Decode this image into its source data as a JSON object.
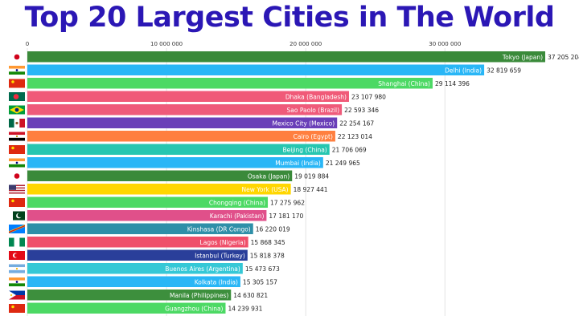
{
  "chart_data": {
    "type": "bar",
    "title": "Top 20 Largest Cities in The World",
    "orientation": "horizontal",
    "xlim": [
      0,
      37205204
    ],
    "xticks": [
      0,
      10000000,
      20000000,
      30000000
    ],
    "xtick_labels": [
      "0",
      "10 000 000",
      "20 000 000",
      "30 000 000"
    ],
    "grid": true,
    "categories": [
      "Tokyo (Japan)",
      "Delhi (India)",
      "Shanghai (China)",
      "Dhaka (Bangladesh)",
      "Sao Paolo (Brazil)",
      "Mexico City (Mexico)",
      "Cairo (Egypt)",
      "Beijing (China)",
      "Mumbai (India)",
      "Osaka (Japan)",
      "New York (USA)",
      "Chongqing (China)",
      "Karachi (Pakistan)",
      "Kinshasa (DR Congo)",
      "Lagos (Nigeria)",
      "Istanbul (Turkey)",
      "Buenos Aires (Argentina)",
      "Kolkata (India)",
      "Manila (Philippines)",
      "Guangzhou (China)"
    ],
    "values": [
      37205204,
      32819659,
      29114396,
      23107980,
      22593346,
      22254167,
      22123014,
      21706069,
      21249965,
      19019884,
      18927441,
      17275962,
      17181170,
      16220019,
      15868345,
      15818378,
      15473673,
      15305157,
      14630821,
      14239931
    ],
    "value_labels": [
      "37 205 204",
      "32 819 659",
      "29 114 396",
      "23 107 980",
      "22 593 346",
      "22 254 167",
      "22 123 014",
      "21 706 069",
      "21 249 965",
      "19 019 884",
      "18 927 441",
      "17 275 962",
      "17 181 170",
      "16 220 019",
      "15 868 345",
      "15 818 378",
      "15 473 673",
      "15 305 157",
      "14 630 821",
      "14 239 931"
    ],
    "bar_colors": [
      "#3a8a3a",
      "#29b6f6",
      "#4cd964",
      "#f05a78",
      "#ef5a7a",
      "#6a3fb8",
      "#ff7f3f",
      "#26c6b0",
      "#29b6f6",
      "#3a8a3a",
      "#ffd600",
      "#4cd964",
      "#e0508a",
      "#2e8fa8",
      "#ef4f6a",
      "#2a3f9a",
      "#35c8d6",
      "#29b6f6",
      "#3d8f3d",
      "#4cd964"
    ],
    "flag_icons": [
      "japan-flag-icon",
      "india-flag-icon",
      "china-flag-icon",
      "bangladesh-flag-icon",
      "brazil-flag-icon",
      "mexico-flag-icon",
      "egypt-flag-icon",
      "china-flag-icon",
      "india-flag-icon",
      "japan-flag-icon",
      "usa-flag-icon",
      "china-flag-icon",
      "pakistan-flag-icon",
      "dr-congo-flag-icon",
      "nigeria-flag-icon",
      "turkey-flag-icon",
      "argentina-flag-icon",
      "india-flag-icon",
      "philippines-flag-icon",
      "china-flag-icon"
    ],
    "title_color": "#2b17b5"
  }
}
